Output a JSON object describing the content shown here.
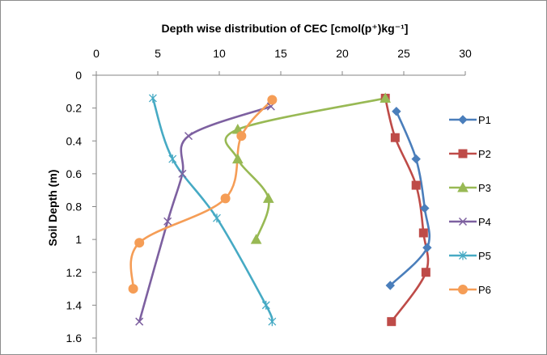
{
  "chart_data": {
    "type": "line",
    "title": "Depth wise distribution of CEC [cmol(p⁺)kg⁻¹]",
    "xlabel": "",
    "ylabel": "Soil Depth (m)",
    "xlim": [
      0,
      30
    ],
    "ylim": [
      0,
      1.6
    ],
    "y_reversed": true,
    "x_axis_position": "top",
    "x_ticks": [
      "0",
      "5",
      "10",
      "15",
      "20",
      "25",
      "30"
    ],
    "y_ticks": [
      "0",
      "0.2",
      "0.4",
      "0.6",
      "0.8",
      "1",
      "1.2",
      "1.4",
      "1.6"
    ],
    "grid": false,
    "legend_position": "right",
    "series": [
      {
        "name": "P1",
        "color": "#4a7ebb",
        "marker": "diamond",
        "points": [
          [
            24.4,
            0.22
          ],
          [
            26.0,
            0.51
          ],
          [
            26.7,
            0.81
          ],
          [
            26.9,
            1.05
          ],
          [
            23.9,
            1.28
          ]
        ]
      },
      {
        "name": "P2",
        "color": "#be4b48",
        "marker": "square",
        "points": [
          [
            23.5,
            0.14
          ],
          [
            24.3,
            0.38
          ],
          [
            26.0,
            0.67
          ],
          [
            26.6,
            0.96
          ],
          [
            26.8,
            1.2
          ],
          [
            24.0,
            1.5
          ]
        ]
      },
      {
        "name": "P3",
        "color": "#98b954",
        "marker": "triangle",
        "points": [
          [
            23.5,
            0.14
          ],
          [
            11.5,
            0.33
          ],
          [
            11.5,
            0.51
          ],
          [
            14.0,
            0.75
          ],
          [
            13.0,
            1.0
          ]
        ]
      },
      {
        "name": "P4",
        "color": "#7d60a0",
        "marker": "x",
        "points": [
          [
            14.2,
            0.19
          ],
          [
            7.5,
            0.37
          ],
          [
            7.0,
            0.6
          ],
          [
            5.8,
            0.89
          ],
          [
            3.5,
            1.5
          ]
        ]
      },
      {
        "name": "P5",
        "color": "#46aac4",
        "marker": "asterisk",
        "points": [
          [
            4.6,
            0.14
          ],
          [
            6.2,
            0.51
          ],
          [
            9.8,
            0.87
          ],
          [
            13.8,
            1.4
          ],
          [
            14.3,
            1.5
          ]
        ]
      },
      {
        "name": "P6",
        "color": "#f59d56",
        "marker": "circle",
        "points": [
          [
            14.3,
            0.15
          ],
          [
            11.8,
            0.37
          ],
          [
            10.5,
            0.75
          ],
          [
            3.5,
            1.02
          ],
          [
            3.0,
            1.3
          ]
        ]
      }
    ]
  }
}
